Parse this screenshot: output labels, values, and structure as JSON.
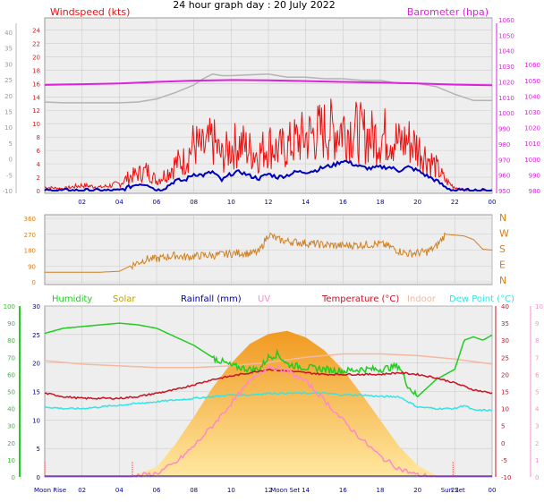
{
  "title": "24 hour graph day : 20 July 2022",
  "colors": {
    "wind": "#ee1111",
    "gust": "#0000bb",
    "baro": "#dd22dd",
    "baro_prev": "#b4b4b4",
    "dir": "#d08020",
    "humidity": "#22cc22",
    "solar": "#f0a830",
    "rain": "#000099",
    "uv": "#ff88cc",
    "temp": "#cc1122",
    "indoor": "#f5b8a0",
    "dew": "#33e5e5",
    "panel": "#eeeeee",
    "grid": "#cccccc"
  },
  "chart_data": [
    {
      "type": "line",
      "id": "wind_baro",
      "left_label": "Windspeed (kts)",
      "right_label": "Barometer (hpa)",
      "x_ticks": [
        "02",
        "04",
        "06",
        "08",
        "10",
        "12",
        "14",
        "16",
        "18",
        "20",
        "22",
        "00"
      ],
      "y_left_ticks": [
        "-10",
        "-5",
        "0",
        "5",
        "10",
        "15",
        "20",
        "25",
        "30",
        "35",
        "40"
      ],
      "y_left_inner_ticks": [
        "0",
        "2",
        "4",
        "6",
        "8",
        "10",
        "12",
        "14",
        "16",
        "18",
        "20",
        "22",
        "24"
      ],
      "y_right_ticks": [
        "980",
        "990",
        "1000",
        "1010",
        "1020",
        "1030",
        "1040",
        "1050",
        "1060"
      ],
      "y_right_inner_ticks": [
        "950",
        "960",
        "970",
        "980",
        "990",
        "1000",
        "1010",
        "1020",
        "1030",
        "1040",
        "1050",
        "1060"
      ],
      "xlim": [
        0,
        24
      ],
      "ylim_kts": [
        0,
        25
      ],
      "ylim_hpa": [
        950,
        1060
      ],
      "series": [
        {
          "key": "windspeed",
          "x": [
            0,
            1,
            2,
            3,
            4,
            4.5,
            5,
            5.5,
            6,
            6.5,
            7,
            7.5,
            8,
            8.5,
            9,
            9.5,
            10,
            10.5,
            11,
            11.5,
            12,
            12.5,
            13,
            13.5,
            14,
            14.5,
            15,
            15.5,
            16,
            16.5,
            17,
            17.5,
            18,
            18.5,
            19,
            19.5,
            20,
            20.5,
            21,
            21.5,
            22,
            22.5,
            23,
            24
          ],
          "y": [
            0.5,
            0.3,
            0.8,
            0.5,
            1,
            2,
            2.5,
            3,
            1.5,
            2.5,
            4,
            4.5,
            7,
            6,
            7.5,
            5,
            6.5,
            7,
            6,
            5.5,
            7,
            6,
            6.5,
            7.5,
            8,
            8.5,
            9,
            9,
            9.5,
            9,
            8.5,
            8,
            8,
            8.5,
            7,
            7.5,
            6.5,
            5,
            3.5,
            1.5,
            0.5,
            0,
            0,
            0
          ]
        },
        {
          "key": "gust",
          "x": [
            0,
            1,
            2,
            3,
            4,
            4.5,
            5,
            5.5,
            6,
            6.5,
            7,
            7.5,
            8,
            8.5,
            9,
            9.5,
            10,
            10.5,
            11,
            11.5,
            12,
            12.5,
            13,
            13.5,
            14,
            14.5,
            15,
            15.5,
            16,
            16.5,
            17,
            17.5,
            18,
            18.5,
            19,
            19.5,
            20,
            20.5,
            21,
            21.5,
            22,
            22.5,
            23,
            24
          ],
          "y": [
            0,
            0,
            0,
            0,
            0,
            0.5,
            1,
            1,
            0,
            0.5,
            1.5,
            1.5,
            2.5,
            2.3,
            2.8,
            1.5,
            2.5,
            2.8,
            2.2,
            1.8,
            2.5,
            2,
            2.3,
            2.8,
            2.8,
            3,
            3.5,
            3.8,
            4.5,
            4,
            3.5,
            3.3,
            3.5,
            3.5,
            3,
            3.5,
            3,
            2.2,
            1.5,
            0.5,
            0,
            0,
            0,
            0
          ]
        },
        {
          "key": "barometer",
          "x": [
            0,
            2,
            4,
            6,
            8,
            10,
            12,
            14,
            16,
            18,
            20,
            22,
            24
          ],
          "y": [
            1018,
            1018.5,
            1019,
            1020,
            1020.8,
            1021.2,
            1021,
            1020.5,
            1020,
            1019.5,
            1019,
            1018.2,
            1017.8
          ]
        },
        {
          "key": "barometer_prev",
          "x": [
            0,
            1,
            2,
            3,
            4,
            5,
            6,
            7,
            8,
            8.5,
            9,
            9.5,
            10,
            11,
            12,
            13,
            14,
            15,
            16,
            17,
            18,
            19,
            20,
            21,
            22,
            23,
            24
          ],
          "y": [
            1007,
            1006.5,
            1006.5,
            1006.5,
            1006.5,
            1007,
            1009,
            1013,
            1018,
            1022,
            1025,
            1024,
            1024,
            1024.5,
            1025,
            1023,
            1023,
            1022,
            1022,
            1021,
            1021,
            1019,
            1019,
            1017,
            1012,
            1008,
            1008
          ]
        }
      ]
    },
    {
      "type": "line",
      "id": "wind_direction",
      "y_ticks": [
        "0",
        "90",
        "180",
        "270",
        "360"
      ],
      "compass": [
        "N",
        "W",
        "S",
        "E",
        "N"
      ],
      "xlim": [
        0,
        24
      ],
      "ylim": [
        0,
        360
      ],
      "series": [
        {
          "key": "direction",
          "x": [
            0,
            1,
            2,
            3,
            4,
            4.5,
            5,
            5.5,
            6,
            6.5,
            7,
            7.5,
            8,
            8.5,
            9,
            9.5,
            10,
            10.5,
            11,
            11.5,
            12,
            12.5,
            13,
            14,
            15,
            16,
            17,
            18,
            18.5,
            19,
            19.5,
            20,
            20.5,
            21,
            21.5,
            22,
            22.5,
            23,
            23.5,
            24
          ],
          "y": [
            55,
            55,
            55,
            55,
            60,
            85,
            110,
            130,
            130,
            140,
            150,
            140,
            145,
            150,
            150,
            155,
            160,
            165,
            160,
            170,
            270,
            240,
            230,
            220,
            210,
            205,
            210,
            215,
            200,
            175,
            160,
            165,
            170,
            200,
            270,
            265,
            260,
            240,
            185,
            180
          ]
        }
      ]
    },
    {
      "type": "line",
      "id": "environment",
      "legend": [
        "Humidity",
        "Solar",
        "Rainfall (mm)",
        "UV",
        "Temperature (°C)",
        "Indoor",
        "Dew Point (°C)"
      ],
      "x_labels": [
        "Moon Rise",
        "02",
        "04",
        "06",
        "08",
        "10",
        "12",
        "Moon Set",
        "14",
        "16",
        "18",
        "20",
        "Sun Set",
        "22",
        "00"
      ],
      "y_humidity_ticks": [
        "0",
        "10",
        "20",
        "30",
        "40",
        "50",
        "60",
        "70",
        "80",
        "90",
        "100"
      ],
      "y_rain_ticks": [
        "0",
        "5",
        "10",
        "15",
        "20",
        "25",
        "30"
      ],
      "y_temp_ticks": [
        "-10",
        "-5",
        "0",
        "5",
        "10",
        "15",
        "20",
        "25",
        "30",
        "35",
        "40"
      ],
      "y_uv_ticks": [
        "0",
        "1",
        "2",
        "3",
        "4",
        "5",
        "6",
        "7",
        "8",
        "9",
        "10"
      ],
      "xlim": [
        0,
        24
      ],
      "series": [
        {
          "key": "humidity",
          "x": [
            0,
            1,
            2,
            3,
            4,
            5,
            6,
            7,
            8,
            9,
            10,
            10.5,
            11,
            11.5,
            12,
            12.5,
            13,
            14,
            15,
            16,
            17,
            18,
            19,
            19.5,
            20,
            20.5,
            21,
            22,
            22.5,
            23,
            23.5,
            24
          ],
          "y": [
            84,
            87,
            88,
            89,
            90,
            89,
            87,
            82,
            77,
            70,
            65,
            64,
            63,
            63,
            70,
            72,
            66,
            64,
            63,
            62,
            63,
            63,
            65,
            53,
            47,
            52,
            57,
            63,
            80,
            82,
            80,
            83
          ]
        },
        {
          "key": "solar",
          "x": [
            4.5,
            6,
            7,
            8,
            9,
            10,
            11,
            12,
            13,
            14,
            15,
            16,
            17,
            18,
            19,
            20,
            21,
            22
          ],
          "y": [
            0,
            6,
            20,
            37,
            55,
            70,
            82,
            88,
            90,
            86,
            78,
            66,
            51,
            35,
            19,
            7,
            1,
            0
          ]
        },
        {
          "key": "temperature",
          "x": [
            0,
            1,
            2,
            3,
            4,
            5,
            6,
            7,
            8,
            9,
            10,
            11,
            12,
            13,
            14,
            15,
            16,
            17,
            18,
            19,
            20,
            21,
            22,
            23,
            24
          ],
          "y": [
            14.5,
            13.5,
            13,
            13,
            13,
            13.5,
            14.5,
            15.5,
            17,
            18.5,
            19.5,
            20.5,
            21.5,
            21,
            20.5,
            20,
            20,
            20,
            20,
            20.5,
            20,
            19,
            17.5,
            15.5,
            14.5
          ]
        },
        {
          "key": "indoor",
          "x": [
            0,
            2,
            4,
            6,
            8,
            10,
            12,
            14,
            16,
            18,
            20,
            22,
            24
          ],
          "y": [
            24,
            23,
            22.5,
            22,
            22,
            22.5,
            23.5,
            25,
            26,
            26,
            25.5,
            24.5,
            23
          ]
        },
        {
          "key": "dew_point",
          "x": [
            0,
            1,
            2,
            3,
            4,
            5,
            6,
            7,
            8,
            9,
            10,
            11,
            12,
            13,
            14,
            15,
            16,
            17,
            18,
            19,
            20,
            21,
            22,
            22.5,
            23,
            24
          ],
          "y": [
            10.5,
            10,
            10,
            10.5,
            11,
            11.5,
            12,
            12.5,
            13,
            13.5,
            14,
            14,
            14.5,
            14.5,
            14.5,
            14.5,
            14,
            14,
            13.5,
            13.5,
            10.5,
            10,
            10,
            11,
            9.5,
            9.5
          ]
        },
        {
          "key": "uv",
          "x": [
            4.5,
            6,
            7,
            8,
            9,
            10,
            11,
            12,
            13,
            14,
            15,
            16,
            17,
            18,
            19,
            20,
            21
          ],
          "y": [
            0,
            0.2,
            0.8,
            1.8,
            3,
            4.3,
            5.6,
            6.5,
            6.2,
            5.6,
            4.5,
            3.3,
            2.2,
            1.2,
            0.5,
            0.1,
            0
          ]
        }
      ]
    }
  ]
}
